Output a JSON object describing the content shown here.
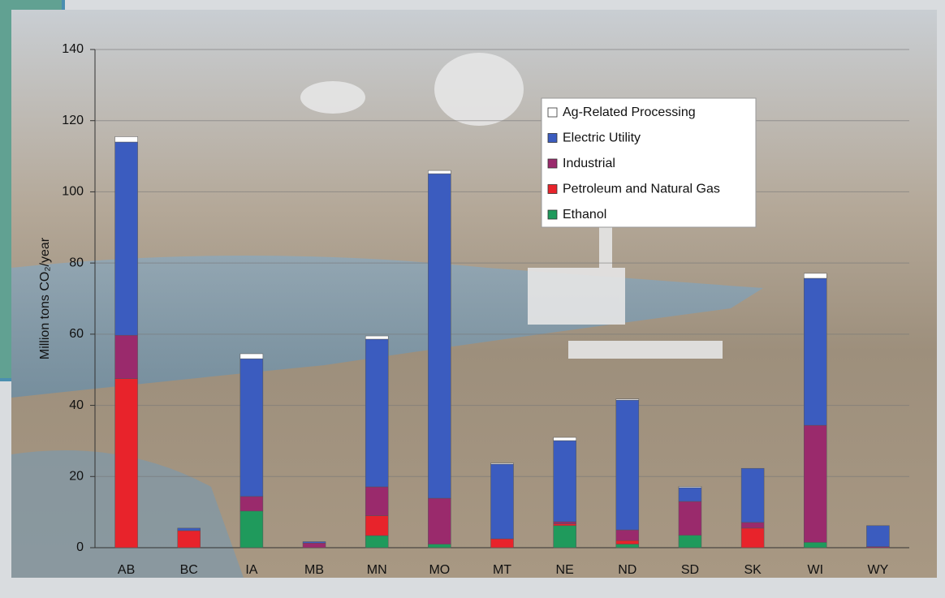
{
  "chart_data": {
    "type": "stacked_bar",
    "y_label": "Million tons CO₂/year",
    "categories": [
      "AB",
      "BC",
      "IA",
      "MB",
      "MN",
      "MO",
      "MT",
      "NE",
      "ND",
      "SD",
      "SK",
      "WI",
      "WY"
    ],
    "series": [
      {
        "name": "Ethanol",
        "color": "#1f9a5c",
        "values": [
          0,
          0,
          10.3,
          0,
          3.4,
          1,
          0,
          6.2,
          1,
          3.5,
          0,
          1.5,
          0
        ]
      },
      {
        "name": "Petroleum and Natural Gas",
        "color": "#e8232b",
        "values": [
          47.5,
          4.8,
          0,
          0,
          5.6,
          0,
          2.5,
          0.5,
          1,
          0,
          5.5,
          0,
          0
        ]
      },
      {
        "name": "Industrial",
        "color": "#9a2a6c",
        "values": [
          12.2,
          0,
          4.1,
          1.3,
          8.1,
          12.9,
          0,
          0.6,
          3,
          9.5,
          1.6,
          32.9,
          0.3
        ]
      },
      {
        "name": "Electric Utility",
        "color": "#3b5cbf",
        "values": [
          54.3,
          0.7,
          38.7,
          0.4,
          41.5,
          91.2,
          21,
          22.8,
          36.5,
          3.9,
          15.2,
          41.3,
          5.9
        ]
      },
      {
        "name": "Ag-Related Processing",
        "color": "#ffffff",
        "values": [
          1.5,
          0,
          1.4,
          0,
          0.9,
          0.9,
          0.3,
          0.9,
          0.3,
          0.3,
          0,
          1.4,
          0
        ]
      }
    ],
    "ylim": [
      0,
      140
    ],
    "yticks": [
      0,
      20,
      40,
      60,
      80,
      100,
      120,
      140
    ],
    "grid": true
  }
}
